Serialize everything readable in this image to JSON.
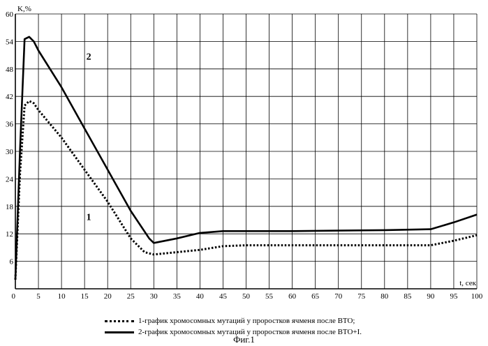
{
  "chart_data": {
    "type": "line",
    "xlabel": "t, сек",
    "ylabel": "K,%",
    "xlim": [
      0,
      100
    ],
    "ylim": [
      0,
      60
    ],
    "xticks": [
      0,
      5,
      10,
      15,
      20,
      25,
      30,
      35,
      40,
      45,
      50,
      55,
      60,
      65,
      70,
      75,
      80,
      85,
      90,
      95,
      100
    ],
    "yticks": [
      0,
      6,
      12,
      18,
      24,
      30,
      36,
      42,
      48,
      54,
      60
    ],
    "grid": true,
    "series": [
      {
        "name": "1-график хромосомных мутаций у проростков ячменя после ВТО;",
        "style": "dotted",
        "x": [
          0,
          1,
          2,
          3,
          4,
          5,
          10,
          15,
          20,
          25,
          28,
          30,
          35,
          40,
          45,
          50,
          60,
          70,
          80,
          90,
          95,
          100
        ],
        "y": [
          2,
          25,
          40,
          41,
          40.5,
          39,
          33,
          26,
          19,
          11,
          8,
          7.5,
          8,
          8.5,
          9.3,
          9.5,
          9.5,
          9.5,
          9.5,
          9.5,
          10.5,
          11.7
        ]
      },
      {
        "name": "2-график хромосомных мутаций у проростков ячменя после ВТО+I.",
        "style": "solid",
        "x": [
          0,
          1,
          2,
          3,
          4,
          5,
          10,
          15,
          20,
          25,
          29,
          30,
          35,
          40,
          45,
          50,
          60,
          70,
          80,
          90,
          95,
          100
        ],
        "y": [
          2,
          30,
          54.5,
          55,
          54,
          52,
          44,
          35,
          26,
          17,
          11,
          10,
          11,
          12.2,
          12.6,
          12.6,
          12.6,
          12.7,
          12.8,
          13,
          14.5,
          16.2
        ]
      }
    ],
    "annotations": [
      {
        "text": "2",
        "x": 15,
        "y": 50
      },
      {
        "text": "1",
        "x": 15,
        "y": 15
      }
    ],
    "caption": "Фиг.1"
  }
}
